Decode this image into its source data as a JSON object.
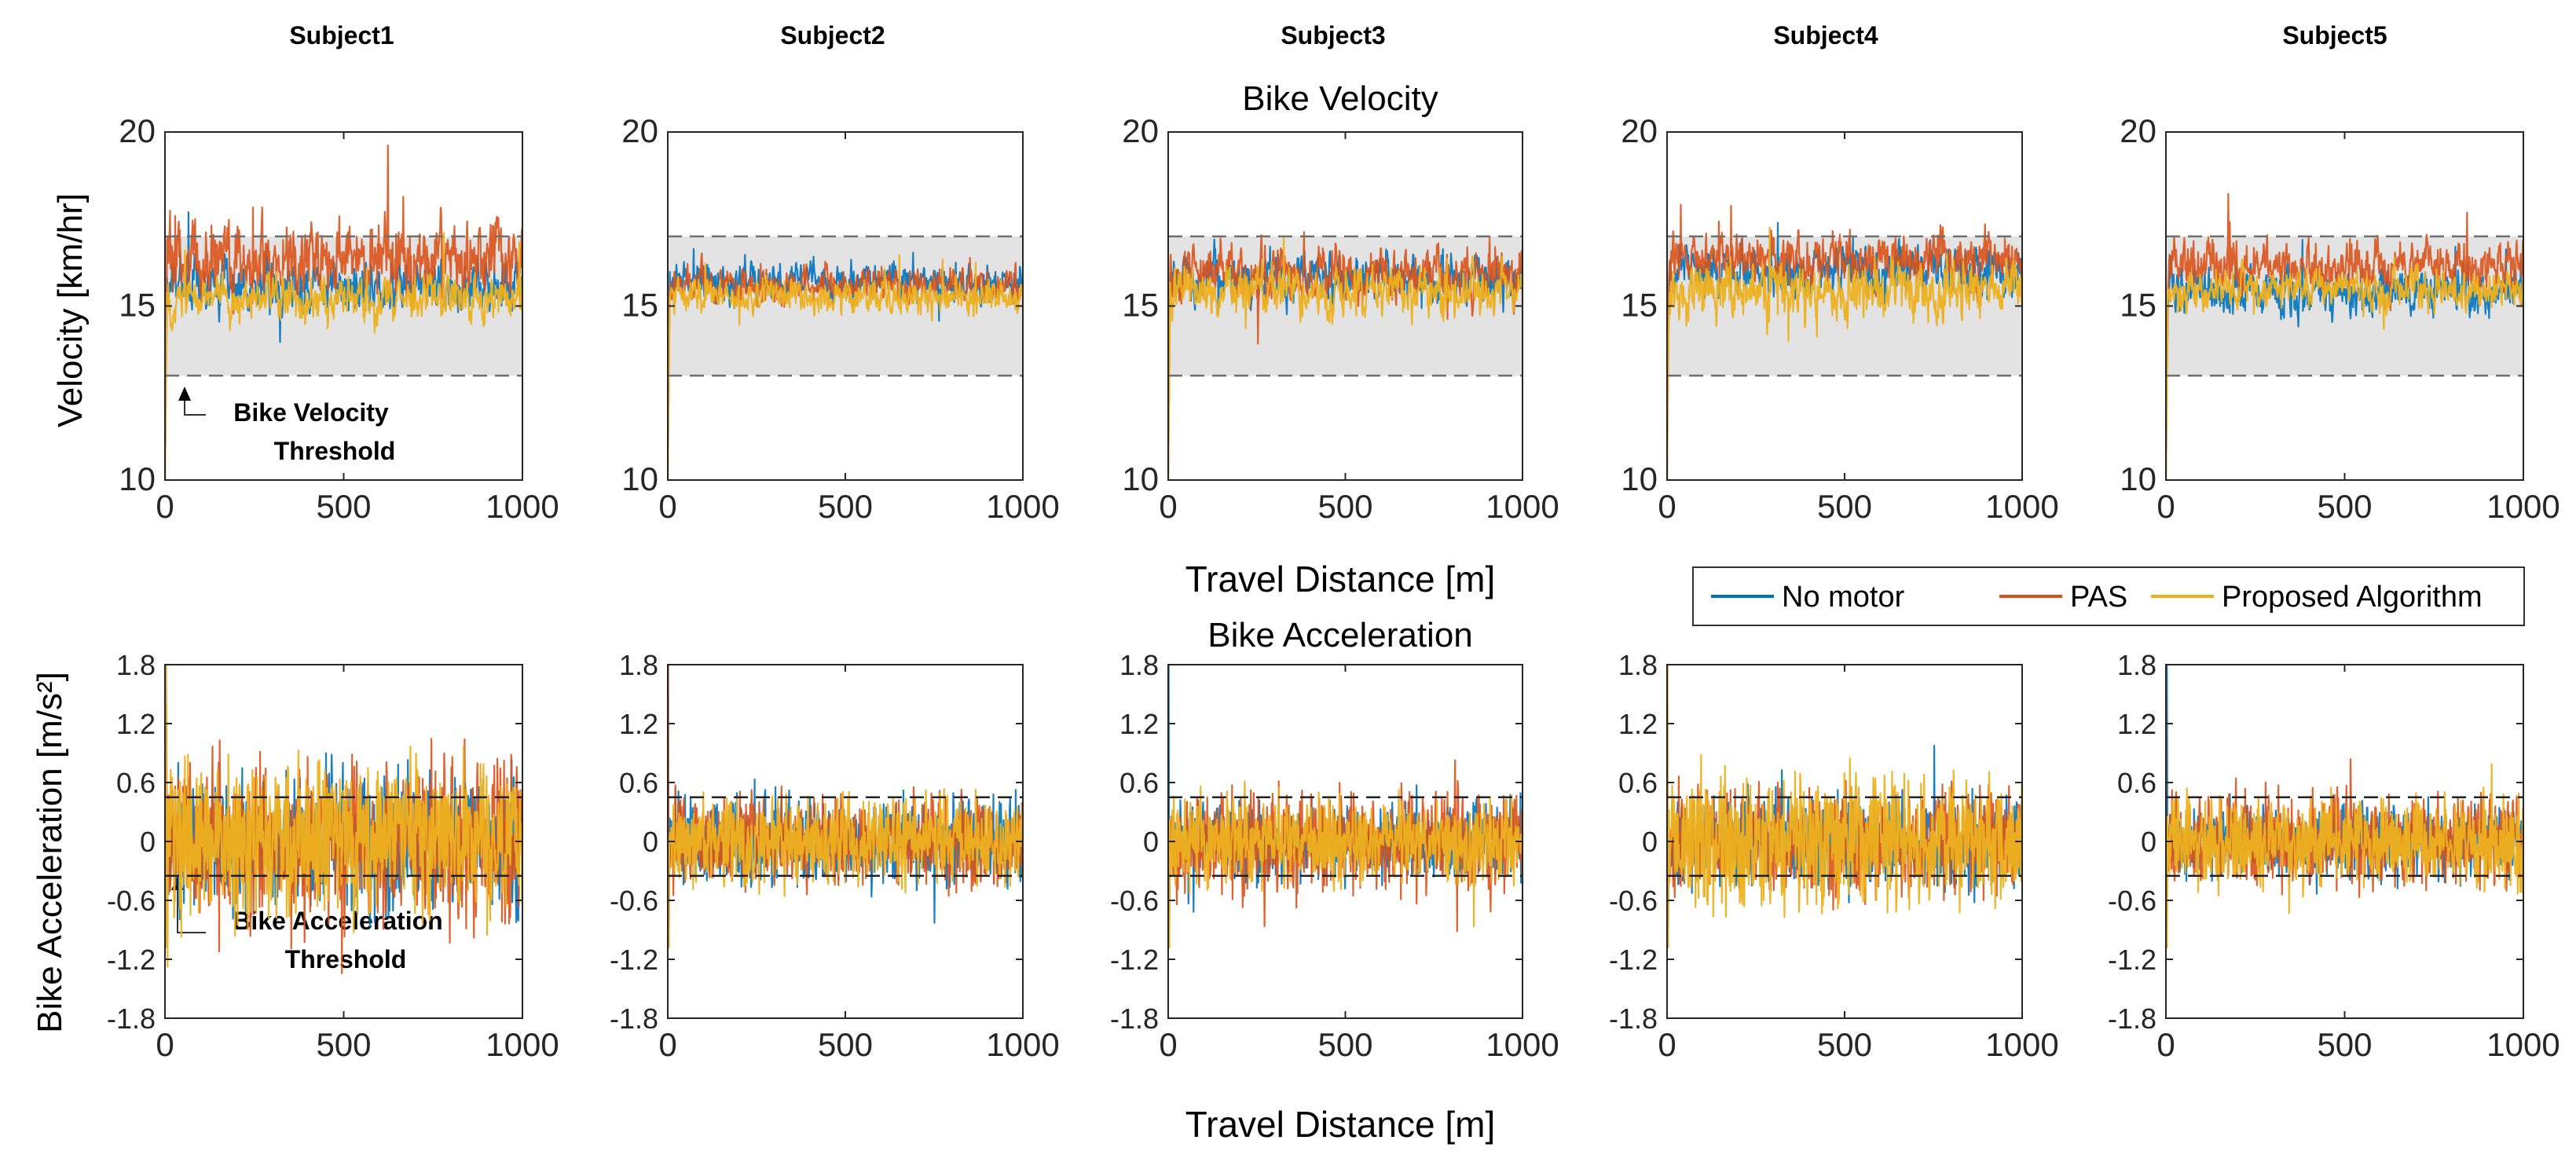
{
  "figure": {
    "subjects": [
      "Subject1",
      "Subject2",
      "Subject3",
      "Subject4",
      "Subject5"
    ],
    "velocity_title": "Bike Velocity",
    "acceleration_title": "Bike Acceleration",
    "velocity_ylabel": "Velocity [km/hr]",
    "acceleration_ylabel": "Bike Acceleration [m/s²]",
    "xlabel": "Travel Distance [m]",
    "legend": [
      "No motor",
      "PAS",
      "Proposed Algorithm"
    ],
    "velocity_annotation": [
      "Bike Velocity",
      "Threshold"
    ],
    "acceleration_annotation": [
      "Bike Acceleration",
      "Threshold"
    ],
    "colors": {
      "no_motor": "#0072BD",
      "pas": "#D95319",
      "proposed": "#EDB120",
      "band": "#E3E3E3"
    }
  },
  "chart_data": [
    {
      "type": "line",
      "title": "Bike Velocity",
      "xlabel": "Travel Distance [m]",
      "ylabel": "Velocity [km/hr]",
      "subjects": [
        "Subject1",
        "Subject2",
        "Subject3",
        "Subject4",
        "Subject5"
      ],
      "xlim": [
        0,
        1000
      ],
      "ylim": [
        10,
        20
      ],
      "xticks": [
        "0",
        "500",
        "1000"
      ],
      "yticks": [
        "10",
        "15",
        "20"
      ],
      "threshold_band": [
        13,
        17
      ],
      "series": [
        {
          "name": "No motor",
          "mean_by_subject": [
            15.6,
            15.7,
            15.8,
            16.0,
            15.4
          ],
          "spread_by_subject": [
            1.0,
            0.7,
            0.9,
            0.9,
            0.9
          ]
        },
        {
          "name": "PAS",
          "mean_by_subject": [
            16.3,
            15.6,
            15.9,
            16.3,
            16.2
          ],
          "spread_by_subject": [
            1.5,
            0.7,
            1.1,
            1.0,
            1.0
          ]
        },
        {
          "name": "Proposed Algorithm",
          "mean_by_subject": [
            15.2,
            15.3,
            15.4,
            15.4,
            15.5
          ],
          "spread_by_subject": [
            0.9,
            0.7,
            1.0,
            1.2,
            0.8
          ]
        }
      ]
    },
    {
      "type": "line",
      "title": "Bike Acceleration",
      "xlabel": "Travel Distance [m]",
      "ylabel": "Bike Acceleration [m/s²]",
      "subjects": [
        "Subject1",
        "Subject2",
        "Subject3",
        "Subject4",
        "Subject5"
      ],
      "xlim": [
        0,
        1000
      ],
      "ylim": [
        -1.8,
        1.8
      ],
      "xticks": [
        "0",
        "500",
        "1000"
      ],
      "yticks": [
        "1.8",
        "1.2",
        "0.6",
        "0",
        "-0.6",
        "-1.2",
        "-1.8"
      ],
      "threshold_lines": [
        0.45,
        -0.35
      ],
      "series": [
        {
          "name": "No motor",
          "spread_by_subject": [
            0.45,
            0.3,
            0.25,
            0.3,
            0.25
          ]
        },
        {
          "name": "PAS",
          "spread_by_subject": [
            0.55,
            0.3,
            0.35,
            0.35,
            0.3
          ]
        },
        {
          "name": "Proposed Algorithm",
          "spread_by_subject": [
            0.5,
            0.3,
            0.3,
            0.45,
            0.3
          ]
        }
      ]
    }
  ]
}
